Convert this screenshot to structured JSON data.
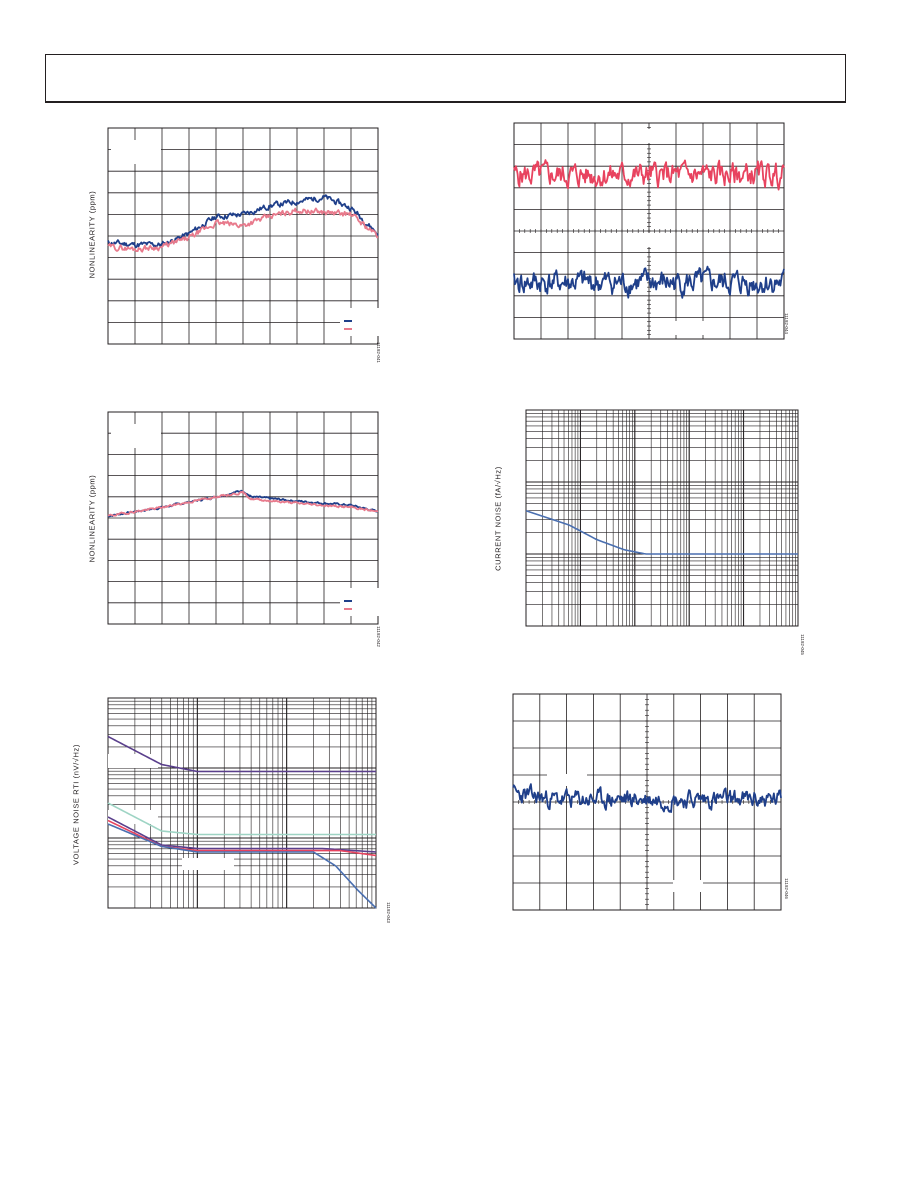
{
  "colors": {
    "navy": "#1f3f8a",
    "red": "#e8435f",
    "pink": "#e87a8c",
    "teal": "#9ed4c4",
    "purple": "#5a3f8c",
    "blue": "#4a6fb0",
    "grid": "#231f20"
  },
  "chart_data": [
    {
      "id": "nl1",
      "type": "line",
      "ylabel": "NONLINEARITY (ppm)",
      "code": "11192-041",
      "grid": true,
      "xdiv": 10,
      "ydiv": 10,
      "ylim": [
        0,
        10
      ],
      "legend_placement": "bottom-right",
      "series": [
        {
          "color": "navy",
          "seed": 11,
          "noise": 0.22,
          "points": [
            [
              0,
              4.7
            ],
            [
              1,
              4.6
            ],
            [
              2,
              4.6
            ],
            [
              3,
              5.1
            ],
            [
              4,
              5.9
            ],
            [
              5,
              6.0
            ],
            [
              6,
              6.4
            ],
            [
              7,
              6.6
            ],
            [
              8,
              6.8
            ],
            [
              9,
              6.3
            ],
            [
              10,
              5.1
            ]
          ]
        },
        {
          "color": "pink",
          "seed": 29,
          "noise": 0.22,
          "points": [
            [
              0,
              4.5
            ],
            [
              1,
              4.4
            ],
            [
              2,
              4.5
            ],
            [
              3,
              4.9
            ],
            [
              4,
              5.6
            ],
            [
              5,
              5.5
            ],
            [
              6,
              5.9
            ],
            [
              7,
              6.2
            ],
            [
              8,
              6.1
            ],
            [
              9,
              6.0
            ],
            [
              10,
              5.0
            ]
          ]
        }
      ]
    },
    {
      "id": "nl2",
      "type": "line",
      "ylabel": "NONLINEARITY (ppm)",
      "code": "11192-042",
      "grid": true,
      "xdiv": 10,
      "ydiv": 10,
      "ylim": [
        0,
        10
      ],
      "legend_placement": "bottom-right",
      "series": [
        {
          "color": "navy",
          "seed": 7,
          "noise": 0.08,
          "points": [
            [
              0,
              5.1
            ],
            [
              2,
              5.5
            ],
            [
              4,
              6.0
            ],
            [
              5,
              6.3
            ],
            [
              5.3,
              6.0
            ],
            [
              7,
              5.8
            ],
            [
              9,
              5.6
            ],
            [
              10,
              5.3
            ]
          ]
        },
        {
          "color": "pink",
          "seed": 19,
          "noise": 0.08,
          "points": [
            [
              0,
              5.1
            ],
            [
              2,
              5.5
            ],
            [
              4,
              6.0
            ],
            [
              5,
              6.2
            ],
            [
              5.3,
              5.9
            ],
            [
              7,
              5.7
            ],
            [
              9,
              5.5
            ],
            [
              10,
              5.3
            ]
          ]
        }
      ]
    },
    {
      "id": "vn",
      "type": "line",
      "ylabel": "VOLTAGE NOISE RTI (nV/√Hz)",
      "code": "11192-043",
      "grid": true,
      "xlog": true,
      "xdecades": 3,
      "ydecades": 3,
      "ylim": [
        0,
        3
      ],
      "series": [
        {
          "color": "purple",
          "points": [
            [
              0,
              2.45
            ],
            [
              0.6,
              2.05
            ],
            [
              1.0,
              1.95
            ],
            [
              2.0,
              1.95
            ],
            [
              3,
              1.95
            ]
          ]
        },
        {
          "color": "teal",
          "points": [
            [
              0,
              1.5
            ],
            [
              0.6,
              1.1
            ],
            [
              1.0,
              1.05
            ],
            [
              2.0,
              1.05
            ],
            [
              3,
              1.05
            ]
          ]
        },
        {
          "color": "purple",
          "points": [
            [
              0,
              1.3
            ],
            [
              0.6,
              0.9
            ],
            [
              1.0,
              0.85
            ],
            [
              2.4,
              0.85
            ],
            [
              3,
              0.8
            ]
          ]
        },
        {
          "color": "red",
          "points": [
            [
              0,
              1.25
            ],
            [
              0.6,
              0.88
            ],
            [
              1.0,
              0.82
            ],
            [
              2.6,
              0.82
            ],
            [
              3,
              0.75
            ]
          ]
        },
        {
          "color": "blue",
          "points": [
            [
              0,
              1.2
            ],
            [
              0.6,
              0.88
            ],
            [
              1.0,
              0.8
            ],
            [
              2.3,
              0.8
            ],
            [
              2.55,
              0.6
            ],
            [
              2.8,
              0.25
            ],
            [
              3,
              0.0
            ]
          ]
        }
      ]
    },
    {
      "id": "tn1",
      "type": "line",
      "code": "11192-044",
      "grid": true,
      "xdiv": 10,
      "ydiv": 10,
      "ylim": [
        0,
        10
      ],
      "ytick_marks": true,
      "series": [
        {
          "color": "red",
          "seed": 5,
          "noise": 0.9,
          "points": [
            [
              0,
              7.6
            ],
            [
              10,
              7.6
            ]
          ]
        },
        {
          "color": "navy",
          "seed": 41,
          "noise": 0.9,
          "points": [
            [
              0,
              2.6
            ],
            [
              10,
              2.6
            ]
          ]
        }
      ]
    },
    {
      "id": "cn",
      "type": "line",
      "ylabel": "CURRENT NOISE (fA/√Hz)",
      "code": "11192-045",
      "grid": true,
      "xlog": true,
      "xdecades": 5,
      "ydecades": 3,
      "ylim": [
        0,
        3
      ],
      "series": [
        {
          "color": "blue",
          "points": [
            [
              0,
              1.6
            ],
            [
              0.8,
              1.4
            ],
            [
              1.3,
              1.2
            ],
            [
              1.8,
              1.06
            ],
            [
              2.2,
              1.0
            ],
            [
              5,
              1.0
            ]
          ]
        }
      ]
    },
    {
      "id": "tn2",
      "type": "line",
      "code": "11192-046",
      "grid": true,
      "xdiv": 10,
      "ydiv": 8,
      "ylim": [
        0,
        8
      ],
      "ytick_marks": true,
      "series": [
        {
          "color": "navy",
          "seed": 23,
          "noise": 0.55,
          "points": [
            [
              0,
              4.3
            ],
            [
              1.5,
              4.1
            ],
            [
              10,
              4.1
            ]
          ]
        }
      ]
    }
  ]
}
